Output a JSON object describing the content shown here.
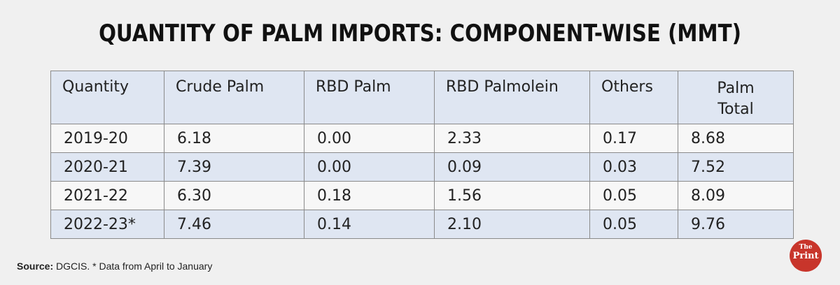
{
  "title": "QUANTITY OF PALM IMPORTS: COMPONENT-WISE (MMT)",
  "colors": {
    "header_bg": "#dfe6f2",
    "stripe": "#dfe6f2",
    "logo": "#c8352b"
  },
  "chart_data": {
    "type": "table",
    "title": "QUANTITY OF PALM IMPORTS: COMPONENT-WISE (MMT)",
    "columns": [
      "Quantity",
      "Crude Palm",
      "RBD Palm",
      "RBD Palmolein",
      "Others",
      "Palm Total"
    ],
    "rows": [
      [
        "2019-20",
        "6.18",
        "0.00",
        "2.33",
        "0.17",
        "8.68"
      ],
      [
        "2020-21",
        "7.39",
        "0.00",
        "0.09",
        "0.03",
        "7.52"
      ],
      [
        "2021-22",
        "6.30",
        "0.18",
        "1.56",
        "0.05",
        "8.09"
      ],
      [
        "2022-23*",
        "7.46",
        "0.14",
        "2.10",
        "0.05",
        "9.76"
      ]
    ]
  },
  "footer": {
    "label": "Source:",
    "text": "DGCIS. * Data from April to January"
  },
  "logo": {
    "line1": "The",
    "line2": "Print"
  }
}
